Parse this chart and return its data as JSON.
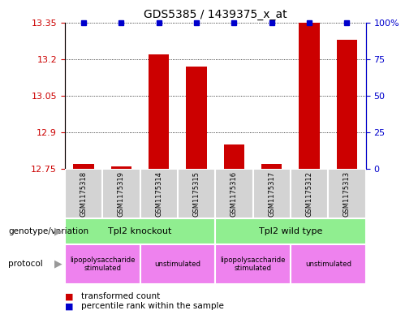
{
  "title": "GDS5385 / 1439375_x_at",
  "samples": [
    "GSM1175318",
    "GSM1175319",
    "GSM1175314",
    "GSM1175315",
    "GSM1175316",
    "GSM1175317",
    "GSM1175312",
    "GSM1175313"
  ],
  "transformed_counts": [
    12.77,
    12.76,
    13.22,
    13.17,
    12.85,
    12.77,
    13.35,
    13.28
  ],
  "percentile_ranks": [
    100,
    100,
    100,
    100,
    100,
    100,
    100,
    100
  ],
  "ylim_left": [
    12.75,
    13.35
  ],
  "ylim_right": [
    0,
    100
  ],
  "yticks_left": [
    12.75,
    12.9,
    13.05,
    13.2,
    13.35
  ],
  "yticks_right": [
    0,
    25,
    50,
    75,
    100
  ],
  "bar_color": "#cc0000",
  "dot_color": "#0000cc",
  "left_label_color": "#cc0000",
  "right_label_color": "#0000cc",
  "grid_color": "#000000",
  "background_color": "#ffffff",
  "bar_bottom": 12.75,
  "sample_box_color": "#d3d3d3",
  "genotype_color": "#90ee90",
  "protocol_color": "#ee82ee",
  "legend_items": [
    {
      "label": "transformed count",
      "color": "#cc0000"
    },
    {
      "label": "percentile rank within the sample",
      "color": "#0000cc"
    }
  ]
}
